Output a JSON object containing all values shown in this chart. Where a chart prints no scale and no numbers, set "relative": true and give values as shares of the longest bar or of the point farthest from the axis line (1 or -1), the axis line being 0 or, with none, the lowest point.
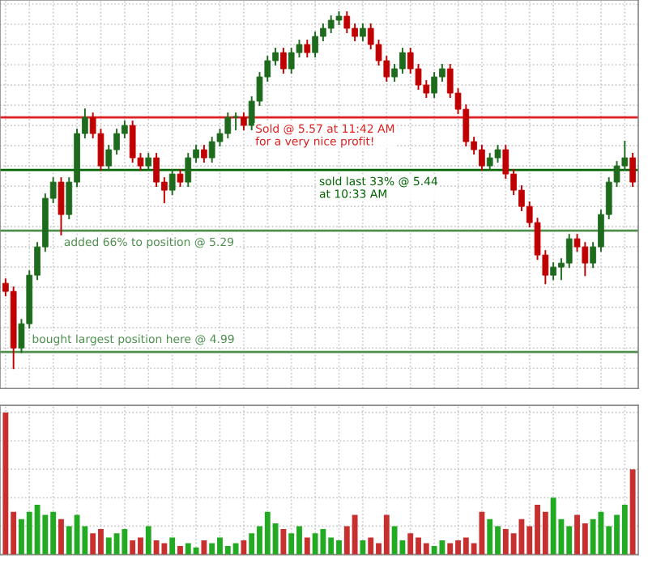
{
  "chart_data": [
    {
      "type": "candlestick",
      "categories": [
        null,
        null,
        null,
        null,
        null,
        null,
        null,
        null,
        null,
        null,
        null,
        null,
        null,
        null,
        null,
        null,
        null,
        null,
        null,
        null,
        null,
        null,
        null,
        null,
        null,
        null,
        null,
        null,
        null,
        null,
        null,
        null,
        null,
        null,
        null,
        null,
        null,
        null,
        null,
        null,
        null,
        null,
        null,
        null,
        null,
        null,
        null,
        null,
        null,
        null,
        null,
        null,
        null,
        null,
        null,
        null,
        null,
        null,
        null,
        null,
        null,
        null,
        null,
        null,
        null,
        null,
        null,
        null,
        null,
        null,
        null,
        null,
        null,
        null,
        null,
        null,
        null,
        null,
        null,
        null
      ],
      "ohlc": [
        [
          5.16,
          5.17,
          5.13,
          5.14
        ],
        [
          5.14,
          5.15,
          4.95,
          5.0
        ],
        [
          5.0,
          5.07,
          4.99,
          5.06
        ],
        [
          5.06,
          5.19,
          5.05,
          5.18
        ],
        [
          5.18,
          5.26,
          5.17,
          5.25
        ],
        [
          5.25,
          5.38,
          5.24,
          5.37
        ],
        [
          5.37,
          5.42,
          5.36,
          5.41
        ],
        [
          5.41,
          5.42,
          5.28,
          5.33
        ],
        [
          5.33,
          5.42,
          5.32,
          5.41
        ],
        [
          5.41,
          5.54,
          5.4,
          5.53
        ],
        [
          5.53,
          5.59,
          5.52,
          5.57
        ],
        [
          5.57,
          5.58,
          5.52,
          5.53
        ],
        [
          5.53,
          5.54,
          5.44,
          5.45
        ],
        [
          5.45,
          5.5,
          5.44,
          5.49
        ],
        [
          5.49,
          5.54,
          5.48,
          5.53
        ],
        [
          5.53,
          5.56,
          5.52,
          5.55
        ],
        [
          5.55,
          5.56,
          5.46,
          5.47
        ],
        [
          5.47,
          5.48,
          5.44,
          5.45
        ],
        [
          5.45,
          5.48,
          5.44,
          5.47
        ],
        [
          5.47,
          5.48,
          5.4,
          5.41
        ],
        [
          5.41,
          5.42,
          5.36,
          5.39
        ],
        [
          5.39,
          5.44,
          5.38,
          5.43
        ],
        [
          5.43,
          5.44,
          5.4,
          5.41
        ],
        [
          5.41,
          5.48,
          5.4,
          5.47
        ],
        [
          5.47,
          5.5,
          5.46,
          5.49
        ],
        [
          5.49,
          5.5,
          5.46,
          5.47
        ],
        [
          5.47,
          5.52,
          5.46,
          5.51
        ],
        [
          5.51,
          5.54,
          5.5,
          5.53
        ],
        [
          5.53,
          5.58,
          5.52,
          5.57
        ],
        [
          5.57,
          5.58,
          5.54,
          5.57
        ],
        [
          5.57,
          5.58,
          5.54,
          5.55
        ],
        [
          5.55,
          5.62,
          5.54,
          5.61
        ],
        [
          5.61,
          5.68,
          5.6,
          5.67
        ],
        [
          5.67,
          5.72,
          5.66,
          5.71
        ],
        [
          5.71,
          5.74,
          5.7,
          5.73
        ],
        [
          5.73,
          5.74,
          5.68,
          5.69
        ],
        [
          5.69,
          5.74,
          5.68,
          5.73
        ],
        [
          5.73,
          5.76,
          5.72,
          5.75
        ],
        [
          5.75,
          5.76,
          5.72,
          5.73
        ],
        [
          5.73,
          5.78,
          5.72,
          5.77
        ],
        [
          5.77,
          5.8,
          5.76,
          5.79
        ],
        [
          5.79,
          5.82,
          5.78,
          5.81
        ],
        [
          5.81,
          5.83,
          5.8,
          5.82
        ],
        [
          5.82,
          5.83,
          5.78,
          5.79
        ],
        [
          5.79,
          5.8,
          5.76,
          5.77
        ],
        [
          5.77,
          5.8,
          5.76,
          5.79
        ],
        [
          5.79,
          5.8,
          5.74,
          5.75
        ],
        [
          5.75,
          5.76,
          5.7,
          5.71
        ],
        [
          5.71,
          5.72,
          5.66,
          5.67
        ],
        [
          5.67,
          5.7,
          5.66,
          5.69
        ],
        [
          5.69,
          5.74,
          5.68,
          5.73
        ],
        [
          5.73,
          5.74,
          5.68,
          5.69
        ],
        [
          5.69,
          5.7,
          5.64,
          5.65
        ],
        [
          5.65,
          5.66,
          5.62,
          5.63
        ],
        [
          5.63,
          5.68,
          5.62,
          5.67
        ],
        [
          5.67,
          5.7,
          5.66,
          5.69
        ],
        [
          5.69,
          5.7,
          5.62,
          5.63
        ],
        [
          5.63,
          5.64,
          5.58,
          5.59
        ],
        [
          5.59,
          5.6,
          5.5,
          5.51
        ],
        [
          5.51,
          5.52,
          5.48,
          5.49
        ],
        [
          5.49,
          5.5,
          5.44,
          5.45
        ],
        [
          5.45,
          5.48,
          5.44,
          5.47
        ],
        [
          5.47,
          5.5,
          5.46,
          5.49
        ],
        [
          5.49,
          5.5,
          5.42,
          5.43
        ],
        [
          5.43,
          5.44,
          5.38,
          5.39
        ],
        [
          5.39,
          5.4,
          5.34,
          5.35
        ],
        [
          5.35,
          5.36,
          5.3,
          5.31
        ],
        [
          5.31,
          5.32,
          5.22,
          5.23
        ],
        [
          5.23,
          5.24,
          5.16,
          5.18
        ],
        [
          5.18,
          5.21,
          5.17,
          5.2
        ],
        [
          5.2,
          5.22,
          5.17,
          5.21
        ],
        [
          5.21,
          5.28,
          5.2,
          5.27
        ],
        [
          5.27,
          5.28,
          5.24,
          5.25
        ],
        [
          5.25,
          5.26,
          5.18,
          5.21
        ],
        [
          5.21,
          5.26,
          5.2,
          5.25
        ],
        [
          5.25,
          5.34,
          5.24,
          5.33
        ],
        [
          5.33,
          5.42,
          5.32,
          5.41
        ],
        [
          5.41,
          5.46,
          5.4,
          5.45
        ],
        [
          5.45,
          5.51,
          5.44,
          5.47
        ],
        [
          5.47,
          5.48,
          5.4,
          5.41
        ]
      ],
      "colors": [
        "#c00000",
        "#c00000",
        "#1e6b1e",
        "#1e6b1e",
        "#1e6b1e",
        "#1e6b1e",
        "#1e6b1e",
        "#c00000",
        "#1e6b1e",
        "#1e6b1e",
        "#1e6b1e",
        "#c00000",
        "#c00000",
        "#1e6b1e",
        "#1e6b1e",
        "#1e6b1e",
        "#c00000",
        "#c00000",
        "#1e6b1e",
        "#c00000",
        "#c00000",
        "#1e6b1e",
        "#c00000",
        "#1e6b1e",
        "#1e6b1e",
        "#c00000",
        "#1e6b1e",
        "#1e6b1e",
        "#1e6b1e",
        "#1e6b1e",
        "#c00000",
        "#1e6b1e",
        "#1e6b1e",
        "#1e6b1e",
        "#1e6b1e",
        "#c00000",
        "#1e6b1e",
        "#1e6b1e",
        "#c00000",
        "#1e6b1e",
        "#1e6b1e",
        "#1e6b1e",
        "#1e6b1e",
        "#c00000",
        "#c00000",
        "#1e6b1e",
        "#c00000",
        "#c00000",
        "#c00000",
        "#1e6b1e",
        "#1e6b1e",
        "#c00000",
        "#c00000",
        "#c00000",
        "#1e6b1e",
        "#1e6b1e",
        "#c00000",
        "#c00000",
        "#c00000",
        "#c00000",
        "#c00000",
        "#1e6b1e",
        "#1e6b1e",
        "#c00000",
        "#c00000",
        "#c00000",
        "#c00000",
        "#c00000",
        "#c00000",
        "#1e6b1e",
        "#1e6b1e",
        "#1e6b1e",
        "#c00000",
        "#c00000",
        "#1e6b1e",
        "#1e6b1e",
        "#1e6b1e",
        "#1e6b1e",
        "#1e6b1e",
        "#c00000"
      ],
      "ylim": [
        4.9,
        5.86
      ],
      "yticks": [
        {
          "value": 4.95,
          "label": null
        },
        {
          "value": 5.0,
          "label": null
        },
        {
          "value": 5.05,
          "label": null
        },
        {
          "value": 5.1,
          "label": null
        },
        {
          "value": 5.15,
          "label": null
        },
        {
          "value": 5.2,
          "label": null
        },
        {
          "value": 5.25,
          "label": null
        },
        {
          "value": 5.3,
          "label": null
        },
        {
          "value": 5.35,
          "label": null
        },
        {
          "value": 5.4,
          "label": null
        },
        {
          "value": 5.45,
          "label": null
        },
        {
          "value": 5.5,
          "label": null
        },
        {
          "value": 5.55,
          "label": null
        },
        {
          "value": 5.6,
          "label": null
        },
        {
          "value": 5.65,
          "label": null
        },
        {
          "value": 5.7,
          "label": null
        },
        {
          "value": 5.75,
          "label": null
        },
        {
          "value": 5.8,
          "label": null
        },
        {
          "value": 5.85,
          "label": null
        }
      ],
      "grid": true,
      "ref_lines": [
        {
          "axis": "y",
          "value": 5.57,
          "label": "Sold @ 5.57 at 11:42 AM\nfor a very nice profit!",
          "color": "#e02020"
        },
        {
          "axis": "y",
          "value": 5.44,
          "label": "sold last 33% @ 5.44\nat 10:33 AM",
          "color": "#006400"
        },
        {
          "axis": "y",
          "value": 5.29,
          "label": "added 66% to position @ 5.29",
          "color": "#4e8f4e"
        },
        {
          "axis": "y",
          "value": 4.99,
          "label": "bought largest position here @ 4.99",
          "color": "#4e8f4e"
        }
      ]
    },
    {
      "type": "bar",
      "relative": true,
      "categories": [
        null,
        null,
        null,
        null,
        null,
        null,
        null,
        null,
        null,
        null,
        null,
        null,
        null,
        null,
        null,
        null,
        null,
        null,
        null,
        null,
        null,
        null,
        null,
        null,
        null,
        null,
        null,
        null,
        null,
        null,
        null,
        null,
        null,
        null,
        null,
        null,
        null,
        null,
        null,
        null,
        null,
        null,
        null,
        null,
        null,
        null,
        null,
        null,
        null,
        null,
        null,
        null,
        null,
        null,
        null,
        null,
        null,
        null,
        null,
        null,
        null,
        null,
        null,
        null,
        null,
        null,
        null,
        null,
        null,
        null,
        null,
        null,
        null,
        null,
        null,
        null,
        null,
        null,
        null,
        null
      ],
      "values": [
        1.0,
        0.3,
        0.25,
        0.3,
        0.35,
        0.28,
        0.3,
        0.25,
        0.2,
        0.28,
        0.2,
        0.15,
        0.18,
        0.12,
        0.15,
        0.18,
        0.1,
        0.12,
        0.2,
        0.1,
        0.08,
        0.12,
        0.06,
        0.08,
        0.05,
        0.1,
        0.08,
        0.12,
        0.06,
        0.08,
        0.1,
        0.15,
        0.2,
        0.3,
        0.22,
        0.18,
        0.15,
        0.2,
        0.12,
        0.15,
        0.18,
        0.12,
        0.1,
        0.2,
        0.28,
        0.1,
        0.12,
        0.08,
        0.28,
        0.2,
        0.1,
        0.15,
        0.12,
        0.08,
        0.06,
        0.1,
        0.08,
        0.1,
        0.12,
        0.08,
        0.3,
        0.25,
        0.2,
        0.18,
        0.15,
        0.25,
        0.2,
        0.35,
        0.3,
        0.4,
        0.25,
        0.2,
        0.28,
        0.22,
        0.25,
        0.3,
        0.2,
        0.28,
        0.35,
        0.6
      ],
      "colors": [
        "#c83030",
        "#c83030",
        "#22aa22",
        "#22aa22",
        "#22aa22",
        "#22aa22",
        "#22aa22",
        "#c83030",
        "#22aa22",
        "#22aa22",
        "#22aa22",
        "#c83030",
        "#c83030",
        "#22aa22",
        "#22aa22",
        "#22aa22",
        "#c83030",
        "#c83030",
        "#22aa22",
        "#c83030",
        "#c83030",
        "#22aa22",
        "#c83030",
        "#22aa22",
        "#22aa22",
        "#c83030",
        "#22aa22",
        "#22aa22",
        "#22aa22",
        "#22aa22",
        "#c83030",
        "#22aa22",
        "#22aa22",
        "#22aa22",
        "#22aa22",
        "#c83030",
        "#22aa22",
        "#22aa22",
        "#c83030",
        "#22aa22",
        "#22aa22",
        "#22aa22",
        "#22aa22",
        "#c83030",
        "#c83030",
        "#22aa22",
        "#c83030",
        "#c83030",
        "#c83030",
        "#22aa22",
        "#22aa22",
        "#c83030",
        "#c83030",
        "#c83030",
        "#22aa22",
        "#22aa22",
        "#c83030",
        "#c83030",
        "#c83030",
        "#c83030",
        "#c83030",
        "#22aa22",
        "#22aa22",
        "#c83030",
        "#c83030",
        "#c83030",
        "#c83030",
        "#c83030",
        "#c83030",
        "#22aa22",
        "#22aa22",
        "#22aa22",
        "#c83030",
        "#c83030",
        "#22aa22",
        "#22aa22",
        "#22aa22",
        "#22aa22",
        "#22aa22",
        "#c83030"
      ],
      "grid": true
    }
  ]
}
